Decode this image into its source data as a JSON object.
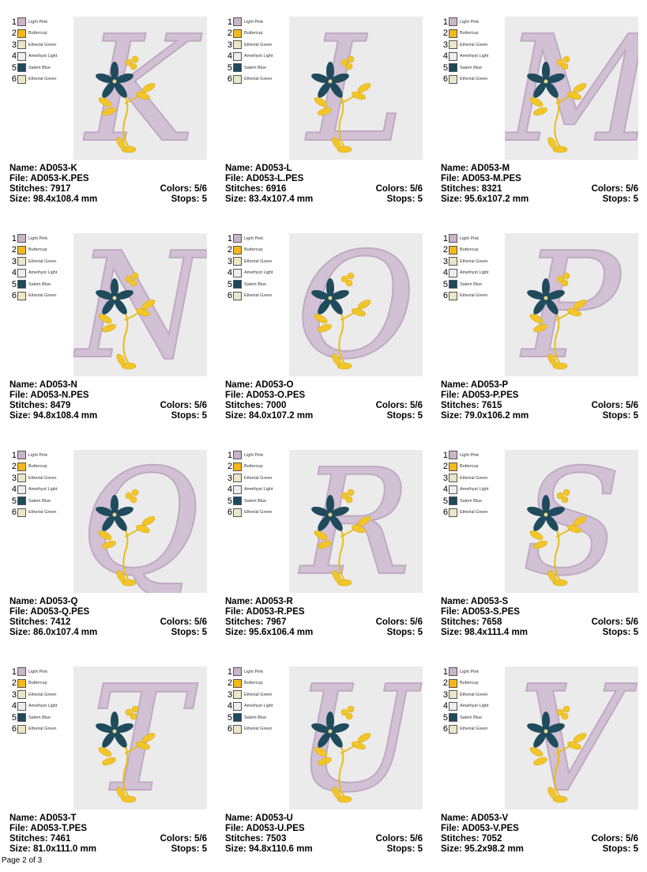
{
  "colors": [
    {
      "num": "1",
      "name": "Light Pink",
      "hex": "#c9b4c9"
    },
    {
      "num": "2",
      "name": "Buttercup",
      "hex": "#f5b81c"
    },
    {
      "num": "3",
      "name": "Etherial Green",
      "hex": "#ece5c6"
    },
    {
      "num": "4",
      "name": "Amethyst Light",
      "hex": "#eeeeee"
    },
    {
      "num": "5",
      "name": "Salem Blue",
      "hex": "#1d4a5c"
    },
    {
      "num": "6",
      "name": "Etherial Green",
      "hex": "#ece5c6"
    }
  ],
  "designs": [
    {
      "letter": "K",
      "name": "Name: AD053-K",
      "file": "File: AD053-K.PES",
      "stitches": "Stitches: 7917",
      "size": "Size: 98.4x108.4 mm",
      "colors": "Colors: 5/6",
      "stops": "Stops: 5"
    },
    {
      "letter": "L",
      "name": "Name: AD053-L",
      "file": "File: AD053-L.PES",
      "stitches": "Stitches: 6916",
      "size": "Size: 83.4x107.4 mm",
      "colors": "Colors: 5/6",
      "stops": "Stops: 5"
    },
    {
      "letter": "M",
      "name": "Name: AD053-M",
      "file": "File: AD053-M.PES",
      "stitches": "Stitches: 8321",
      "size": "Size: 95.6x107.2 mm",
      "colors": "Colors: 5/6",
      "stops": "Stops: 5"
    },
    {
      "letter": "N",
      "name": "Name: AD053-N",
      "file": "File: AD053-N.PES",
      "stitches": "Stitches: 8479",
      "size": "Size: 94.8x108.4 mm",
      "colors": "Colors: 5/6",
      "stops": "Stops: 5"
    },
    {
      "letter": "O",
      "name": "Name: AD053-O",
      "file": "File: AD053-O.PES",
      "stitches": "Stitches: 7000",
      "size": "Size: 84.0x107.2 mm",
      "colors": "Colors: 5/6",
      "stops": "Stops: 5"
    },
    {
      "letter": "P",
      "name": "Name: AD053-P",
      "file": "File: AD053-P.PES",
      "stitches": "Stitches: 7615",
      "size": "Size: 79.0x106.2 mm",
      "colors": "Colors: 5/6",
      "stops": "Stops: 5"
    },
    {
      "letter": "Q",
      "name": "Name: AD053-Q",
      "file": "File: AD053-Q.PES",
      "stitches": "Stitches: 7412",
      "size": "Size: 86.0x107.4 mm",
      "colors": "Colors: 5/6",
      "stops": "Stops: 5"
    },
    {
      "letter": "R",
      "name": "Name: AD053-R",
      "file": "File: AD053-R.PES",
      "stitches": "Stitches: 7967",
      "size": "Size: 95.6x106.4 mm",
      "colors": "Colors: 5/6",
      "stops": "Stops: 5"
    },
    {
      "letter": "S",
      "name": "Name: AD053-S",
      "file": "File: AD053-S.PES",
      "stitches": "Stitches: 7658",
      "size": "Size: 98.4x111.4 mm",
      "colors": "Colors: 5/6",
      "stops": "Stops: 5"
    },
    {
      "letter": "T",
      "name": "Name: AD053-T",
      "file": "File: AD053-T.PES",
      "stitches": "Stitches: 7461",
      "size": "Size: 81.0x111.0 mm",
      "colors": "Colors: 5/6",
      "stops": "Stops: 5"
    },
    {
      "letter": "U",
      "name": "Name: AD053-U",
      "file": "File: AD053-U.PES",
      "stitches": "Stitches: 7503",
      "size": "Size: 94.8x110.6 mm",
      "colors": "Colors: 5/6",
      "stops": "Stops: 5"
    },
    {
      "letter": "V",
      "name": "Name: AD053-V",
      "file": "File: AD053-V.PES",
      "stitches": "Stitches: 7052",
      "size": "Size: 95.2x98.2 mm",
      "colors": "Colors: 5/6",
      "stops": "Stops: 5"
    }
  ],
  "footer": {
    "page": "Page 2 of 3"
  }
}
